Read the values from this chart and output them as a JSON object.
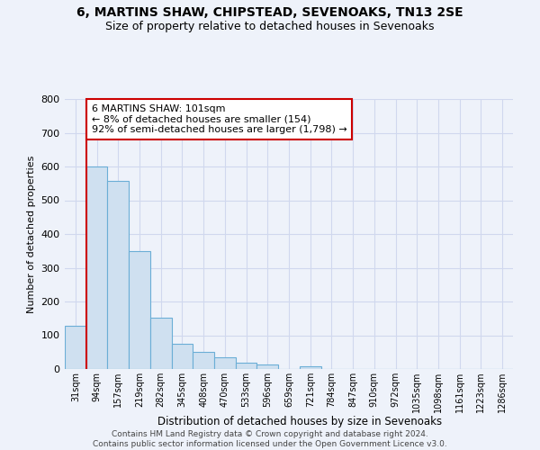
{
  "title": "6, MARTINS SHAW, CHIPSTEAD, SEVENOAKS, TN13 2SE",
  "subtitle": "Size of property relative to detached houses in Sevenoaks",
  "xlabel": "Distribution of detached houses by size in Sevenoaks",
  "ylabel": "Number of detached properties",
  "bar_values": [
    127,
    600,
    558,
    349,
    151,
    76,
    51,
    35,
    18,
    14,
    0,
    8,
    0,
    0,
    0,
    0,
    0,
    0,
    0,
    0,
    0
  ],
  "bar_labels": [
    "31sqm",
    "94sqm",
    "157sqm",
    "219sqm",
    "282sqm",
    "345sqm",
    "408sqm",
    "470sqm",
    "533sqm",
    "596sqm",
    "659sqm",
    "721sqm",
    "784sqm",
    "847sqm",
    "910sqm",
    "972sqm",
    "1035sqm",
    "1098sqm",
    "1161sqm",
    "1223sqm",
    "1286sqm"
  ],
  "bar_color_face": "#cfe0f0",
  "bar_color_edge": "#6baed6",
  "highlight_line_color": "#cc0000",
  "annotation_text": "6 MARTINS SHAW: 101sqm\n← 8% of detached houses are smaller (154)\n92% of semi-detached houses are larger (1,798) →",
  "annotation_box_color": "#ffffff",
  "annotation_box_edge": "#cc0000",
  "ylim": [
    0,
    800
  ],
  "yticks": [
    0,
    100,
    200,
    300,
    400,
    500,
    600,
    700,
    800
  ],
  "footer_line1": "Contains HM Land Registry data © Crown copyright and database right 2024.",
  "footer_line2": "Contains public sector information licensed under the Open Government Licence v3.0.",
  "background_color": "#eef2fa",
  "grid_color": "#d0d8ee"
}
